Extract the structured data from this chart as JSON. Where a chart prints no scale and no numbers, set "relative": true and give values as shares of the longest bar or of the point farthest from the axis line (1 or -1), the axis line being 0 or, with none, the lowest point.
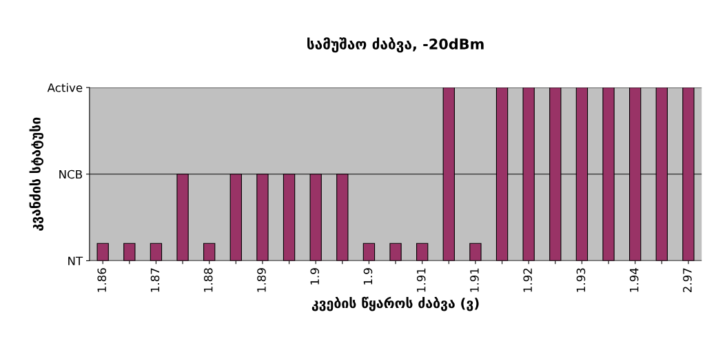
{
  "chart_data": {
    "type": "bar",
    "title": "სამუშაო ძაბვა, -20dBm",
    "xlabel": "კვების წყაროს ძაბვა (ვ)",
    "ylabel": "კვანძის სტატუსი",
    "categories": [
      "1.86",
      null,
      "1.87",
      null,
      "1.88",
      null,
      "1.89",
      null,
      "1.9",
      null,
      "1.9",
      null,
      "1.91",
      null,
      "1.91",
      null,
      "1.92",
      null,
      "1.93",
      null,
      "1.94",
      null,
      "2.97"
    ],
    "values": [
      0.1,
      0.1,
      0.1,
      0.5,
      0.1,
      0.5,
      0.5,
      0.5,
      0.5,
      0.5,
      0.1,
      0.1,
      0.1,
      1,
      0.1,
      1,
      1,
      1,
      1,
      1,
      1,
      1,
      1
    ],
    "relative": true,
    "color": "#993366",
    "ref_lines": [
      {
        "axis": "y",
        "value": 0,
        "label": "NT",
        "color": "#000000"
      },
      {
        "axis": "y",
        "value": 0.5,
        "label": "NCB",
        "color": "#000000"
      },
      {
        "axis": "y",
        "value": 1,
        "label": "Active",
        "color": "#000000"
      }
    ],
    "legend": false
  }
}
